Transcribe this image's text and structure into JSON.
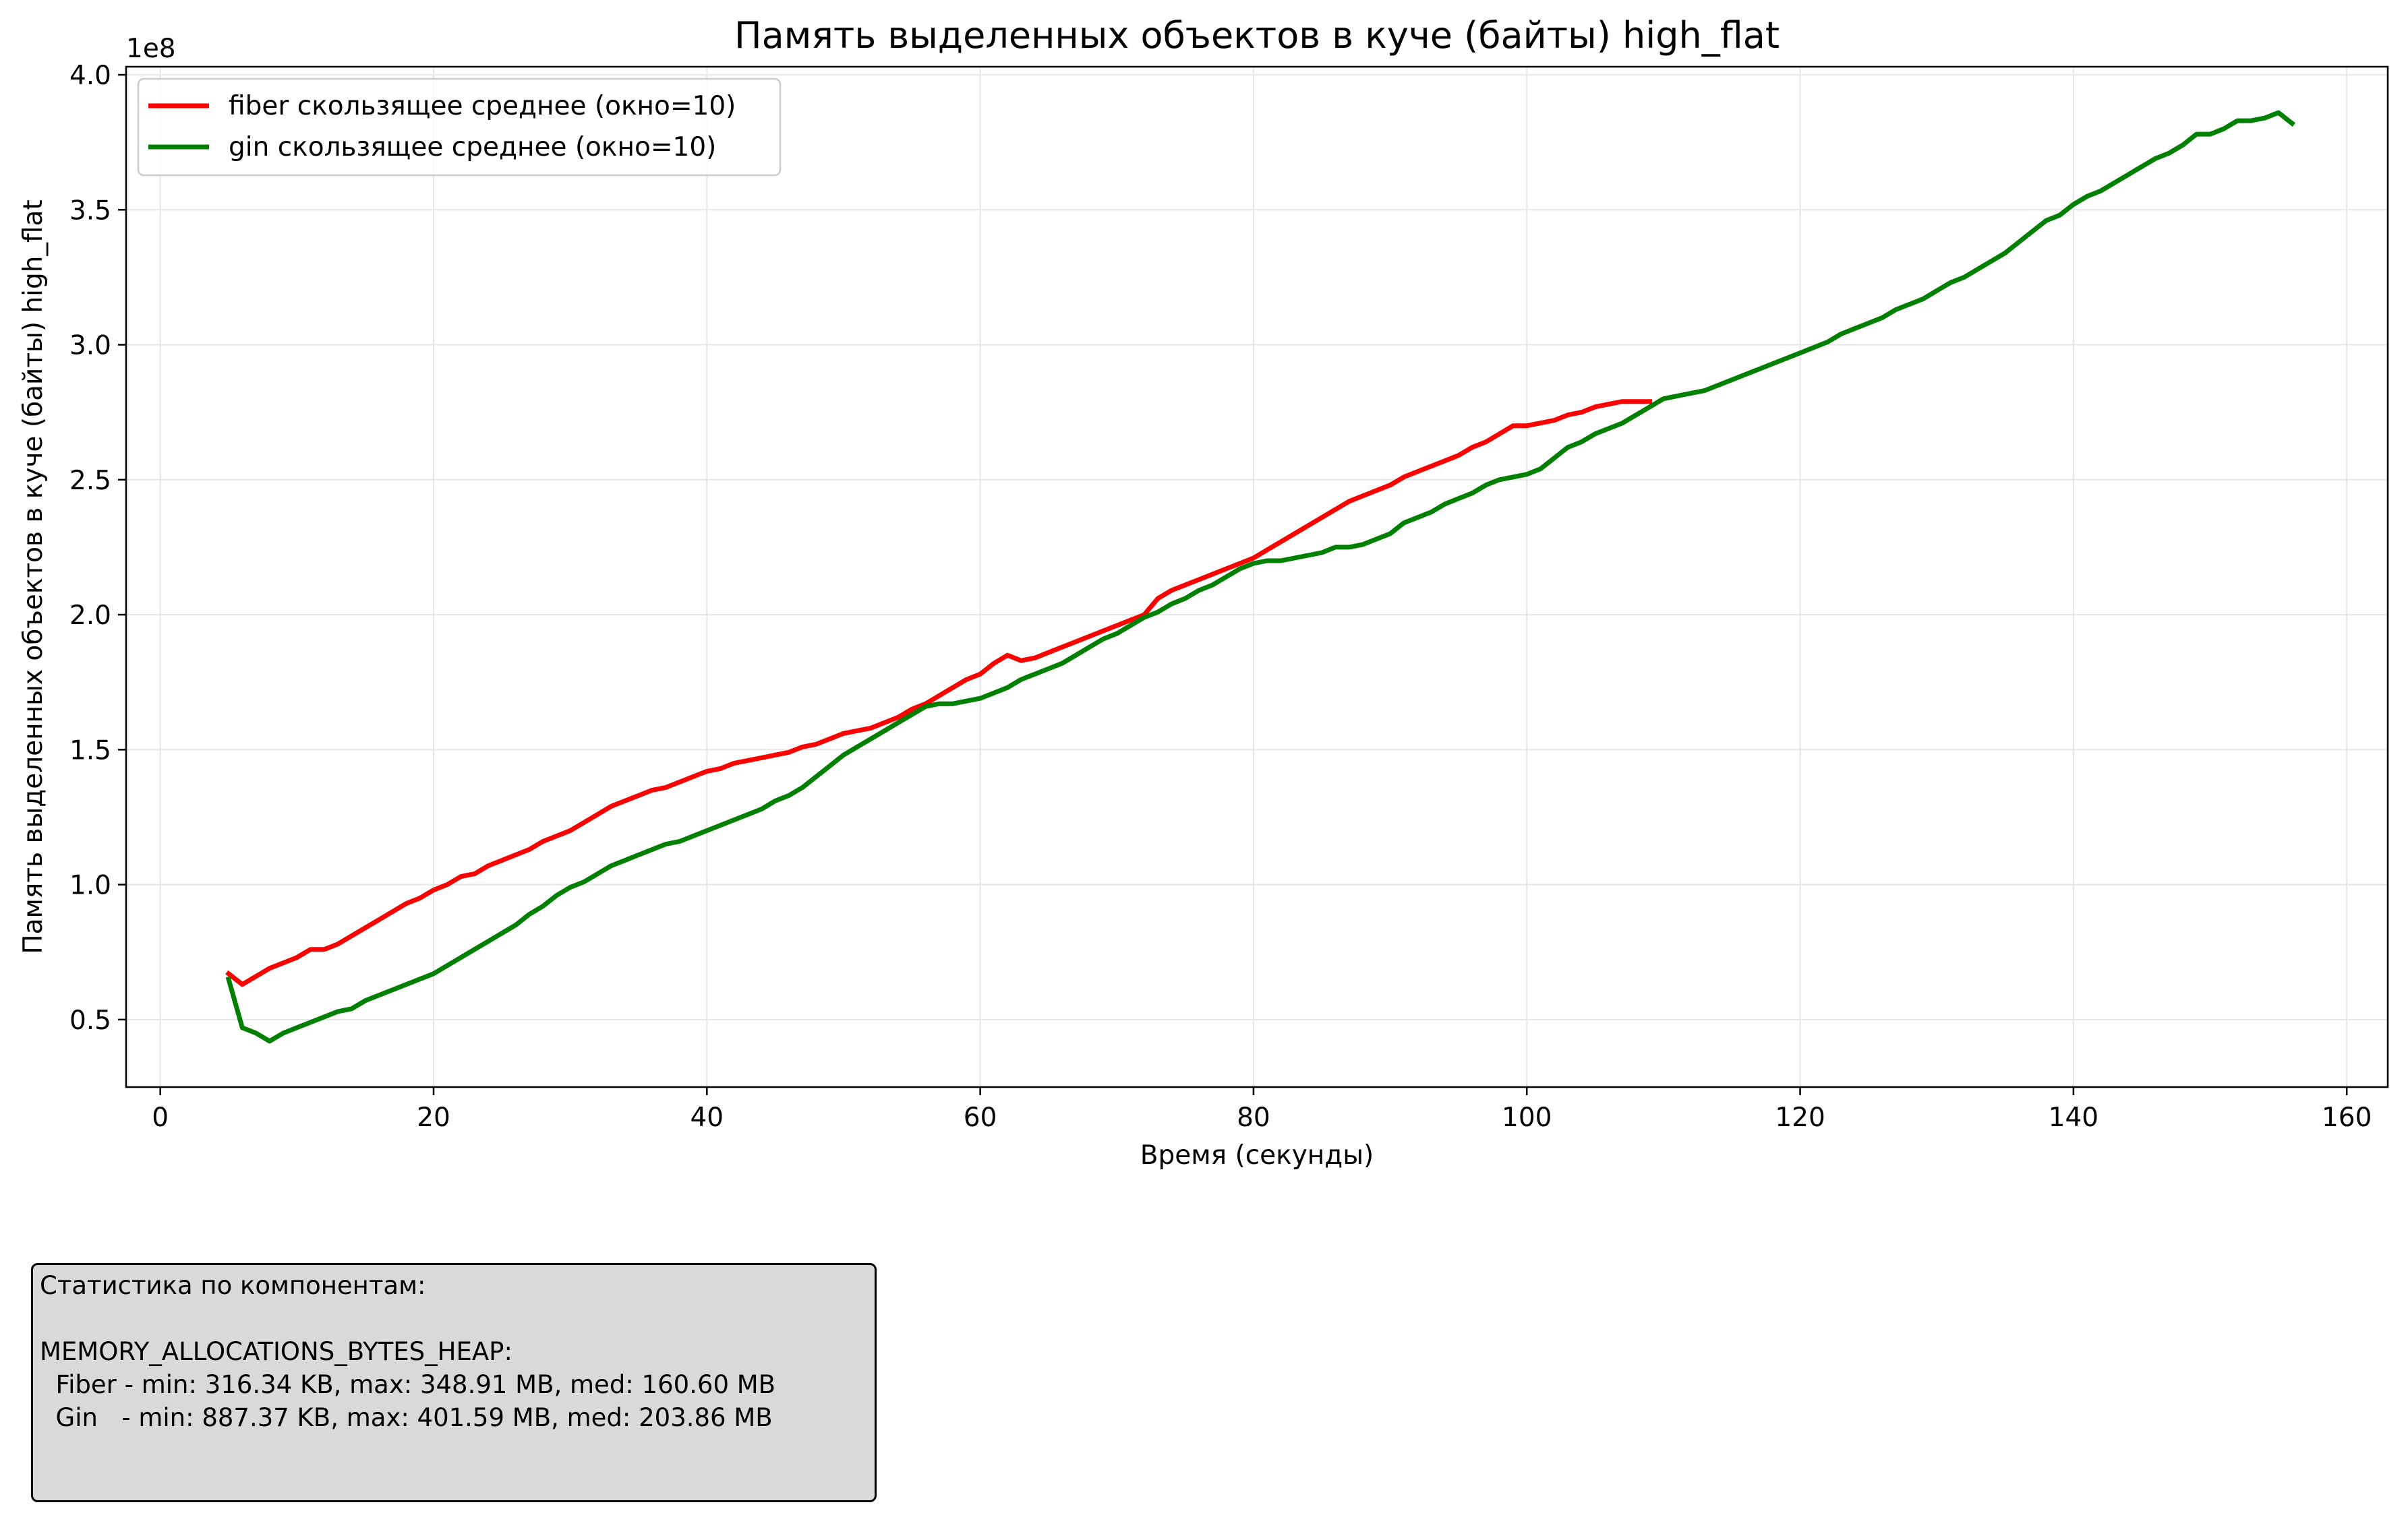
{
  "chart_data": {
    "type": "line",
    "title": "Память выделенных объектов в куче (байты) high_flat",
    "xlabel": "Время (секунды)",
    "ylabel": "Память выделенных объектов в куче (байты) high_flat",
    "y_offset_label": "1e8",
    "xlim": [
      -2.5,
      163
    ],
    "ylim": [
      0.25,
      4.03
    ],
    "y_unit_multiplier": 100000000,
    "x_ticks": [
      0,
      20,
      40,
      60,
      80,
      100,
      120,
      140,
      160
    ],
    "x_tick_labels": [
      "0",
      "20",
      "40",
      "60",
      "80",
      "100",
      "120",
      "140",
      "160"
    ],
    "y_ticks": [
      0.5,
      1.0,
      1.5,
      2.0,
      2.5,
      3.0,
      3.5,
      4.0
    ],
    "y_tick_labels": [
      "0.5",
      "1.0",
      "1.5",
      "2.0",
      "2.5",
      "3.0",
      "3.5",
      "4.0"
    ],
    "grid": true,
    "legend_position": "top-left",
    "series": [
      {
        "name": "fiber скользящее среднее (окно=10)",
        "color": "#ff0000",
        "points": [
          [
            5,
            0.67
          ],
          [
            6,
            0.63
          ],
          [
            7,
            0.66
          ],
          [
            8,
            0.69
          ],
          [
            9,
            0.71
          ],
          [
            10,
            0.73
          ],
          [
            11,
            0.76
          ],
          [
            12,
            0.76
          ],
          [
            13,
            0.78
          ],
          [
            14,
            0.81
          ],
          [
            15,
            0.84
          ],
          [
            16,
            0.87
          ],
          [
            17,
            0.9
          ],
          [
            18,
            0.93
          ],
          [
            19,
            0.95
          ],
          [
            20,
            0.98
          ],
          [
            21,
            1.0
          ],
          [
            22,
            1.03
          ],
          [
            23,
            1.04
          ],
          [
            24,
            1.07
          ],
          [
            25,
            1.09
          ],
          [
            26,
            1.11
          ],
          [
            27,
            1.13
          ],
          [
            28,
            1.16
          ],
          [
            29,
            1.18
          ],
          [
            30,
            1.2
          ],
          [
            31,
            1.23
          ],
          [
            32,
            1.26
          ],
          [
            33,
            1.29
          ],
          [
            34,
            1.31
          ],
          [
            35,
            1.33
          ],
          [
            36,
            1.35
          ],
          [
            37,
            1.36
          ],
          [
            38,
            1.38
          ],
          [
            39,
            1.4
          ],
          [
            40,
            1.42
          ],
          [
            41,
            1.43
          ],
          [
            42,
            1.45
          ],
          [
            43,
            1.46
          ],
          [
            44,
            1.47
          ],
          [
            45,
            1.48
          ],
          [
            46,
            1.49
          ],
          [
            47,
            1.51
          ],
          [
            48,
            1.52
          ],
          [
            49,
            1.54
          ],
          [
            50,
            1.56
          ],
          [
            51,
            1.57
          ],
          [
            52,
            1.58
          ],
          [
            53,
            1.6
          ],
          [
            54,
            1.62
          ],
          [
            55,
            1.65
          ],
          [
            56,
            1.67
          ],
          [
            57,
            1.7
          ],
          [
            58,
            1.73
          ],
          [
            59,
            1.76
          ],
          [
            60,
            1.78
          ],
          [
            61,
            1.82
          ],
          [
            62,
            1.85
          ],
          [
            63,
            1.83
          ],
          [
            64,
            1.84
          ],
          [
            65,
            1.86
          ],
          [
            66,
            1.88
          ],
          [
            67,
            1.9
          ],
          [
            68,
            1.92
          ],
          [
            69,
            1.94
          ],
          [
            70,
            1.96
          ],
          [
            71,
            1.98
          ],
          [
            72,
            2.0
          ],
          [
            73,
            2.06
          ],
          [
            74,
            2.09
          ],
          [
            75,
            2.11
          ],
          [
            76,
            2.13
          ],
          [
            77,
            2.15
          ],
          [
            78,
            2.17
          ],
          [
            79,
            2.19
          ],
          [
            80,
            2.21
          ],
          [
            81,
            2.24
          ],
          [
            82,
            2.27
          ],
          [
            83,
            2.3
          ],
          [
            84,
            2.33
          ],
          [
            85,
            2.36
          ],
          [
            86,
            2.39
          ],
          [
            87,
            2.42
          ],
          [
            88,
            2.44
          ],
          [
            89,
            2.46
          ],
          [
            90,
            2.48
          ],
          [
            91,
            2.51
          ],
          [
            92,
            2.53
          ],
          [
            93,
            2.55
          ],
          [
            94,
            2.57
          ],
          [
            95,
            2.59
          ],
          [
            96,
            2.62
          ],
          [
            97,
            2.64
          ],
          [
            98,
            2.67
          ],
          [
            99,
            2.7
          ],
          [
            100,
            2.7
          ],
          [
            101,
            2.71
          ],
          [
            102,
            2.72
          ],
          [
            103,
            2.74
          ],
          [
            104,
            2.75
          ],
          [
            105,
            2.77
          ],
          [
            106,
            2.78
          ],
          [
            107,
            2.79
          ],
          [
            108,
            2.79
          ],
          [
            109,
            2.79
          ]
        ]
      },
      {
        "name": "gin скользящее среднее (окно=10)",
        "color": "#008000",
        "points": [
          [
            5,
            0.65
          ],
          [
            6,
            0.47
          ],
          [
            7,
            0.45
          ],
          [
            8,
            0.42
          ],
          [
            9,
            0.45
          ],
          [
            10,
            0.47
          ],
          [
            11,
            0.49
          ],
          [
            12,
            0.51
          ],
          [
            13,
            0.53
          ],
          [
            14,
            0.54
          ],
          [
            15,
            0.57
          ],
          [
            16,
            0.59
          ],
          [
            17,
            0.61
          ],
          [
            18,
            0.63
          ],
          [
            19,
            0.65
          ],
          [
            20,
            0.67
          ],
          [
            21,
            0.7
          ],
          [
            22,
            0.73
          ],
          [
            23,
            0.76
          ],
          [
            24,
            0.79
          ],
          [
            25,
            0.82
          ],
          [
            26,
            0.85
          ],
          [
            27,
            0.89
          ],
          [
            28,
            0.92
          ],
          [
            29,
            0.96
          ],
          [
            30,
            0.99
          ],
          [
            31,
            1.01
          ],
          [
            32,
            1.04
          ],
          [
            33,
            1.07
          ],
          [
            34,
            1.09
          ],
          [
            35,
            1.11
          ],
          [
            36,
            1.13
          ],
          [
            37,
            1.15
          ],
          [
            38,
            1.16
          ],
          [
            39,
            1.18
          ],
          [
            40,
            1.2
          ],
          [
            41,
            1.22
          ],
          [
            42,
            1.24
          ],
          [
            43,
            1.26
          ],
          [
            44,
            1.28
          ],
          [
            45,
            1.31
          ],
          [
            46,
            1.33
          ],
          [
            47,
            1.36
          ],
          [
            48,
            1.4
          ],
          [
            49,
            1.44
          ],
          [
            50,
            1.48
          ],
          [
            51,
            1.51
          ],
          [
            52,
            1.54
          ],
          [
            53,
            1.57
          ],
          [
            54,
            1.6
          ],
          [
            55,
            1.63
          ],
          [
            56,
            1.66
          ],
          [
            57,
            1.67
          ],
          [
            58,
            1.67
          ],
          [
            59,
            1.68
          ],
          [
            60,
            1.69
          ],
          [
            61,
            1.71
          ],
          [
            62,
            1.73
          ],
          [
            63,
            1.76
          ],
          [
            64,
            1.78
          ],
          [
            65,
            1.8
          ],
          [
            66,
            1.82
          ],
          [
            67,
            1.85
          ],
          [
            68,
            1.88
          ],
          [
            69,
            1.91
          ],
          [
            70,
            1.93
          ],
          [
            71,
            1.96
          ],
          [
            72,
            1.99
          ],
          [
            73,
            2.01
          ],
          [
            74,
            2.04
          ],
          [
            75,
            2.06
          ],
          [
            76,
            2.09
          ],
          [
            77,
            2.11
          ],
          [
            78,
            2.14
          ],
          [
            79,
            2.17
          ],
          [
            80,
            2.19
          ],
          [
            81,
            2.2
          ],
          [
            82,
            2.2
          ],
          [
            83,
            2.21
          ],
          [
            84,
            2.22
          ],
          [
            85,
            2.23
          ],
          [
            86,
            2.25
          ],
          [
            87,
            2.25
          ],
          [
            88,
            2.26
          ],
          [
            89,
            2.28
          ],
          [
            90,
            2.3
          ],
          [
            91,
            2.34
          ],
          [
            92,
            2.36
          ],
          [
            93,
            2.38
          ],
          [
            94,
            2.41
          ],
          [
            95,
            2.43
          ],
          [
            96,
            2.45
          ],
          [
            97,
            2.48
          ],
          [
            98,
            2.5
          ],
          [
            99,
            2.51
          ],
          [
            100,
            2.52
          ],
          [
            101,
            2.54
          ],
          [
            102,
            2.58
          ],
          [
            103,
            2.62
          ],
          [
            104,
            2.64
          ],
          [
            105,
            2.67
          ],
          [
            106,
            2.69
          ],
          [
            107,
            2.71
          ],
          [
            108,
            2.74
          ],
          [
            109,
            2.77
          ],
          [
            110,
            2.8
          ],
          [
            111,
            2.81
          ],
          [
            112,
            2.82
          ],
          [
            113,
            2.83
          ],
          [
            114,
            2.85
          ],
          [
            115,
            2.87
          ],
          [
            116,
            2.89
          ],
          [
            117,
            2.91
          ],
          [
            118,
            2.93
          ],
          [
            119,
            2.95
          ],
          [
            120,
            2.97
          ],
          [
            121,
            2.99
          ],
          [
            122,
            3.01
          ],
          [
            123,
            3.04
          ],
          [
            124,
            3.06
          ],
          [
            125,
            3.08
          ],
          [
            126,
            3.1
          ],
          [
            127,
            3.13
          ],
          [
            128,
            3.15
          ],
          [
            129,
            3.17
          ],
          [
            130,
            3.2
          ],
          [
            131,
            3.23
          ],
          [
            132,
            3.25
          ],
          [
            133,
            3.28
          ],
          [
            134,
            3.31
          ],
          [
            135,
            3.34
          ],
          [
            136,
            3.38
          ],
          [
            137,
            3.42
          ],
          [
            138,
            3.46
          ],
          [
            139,
            3.48
          ],
          [
            140,
            3.52
          ],
          [
            141,
            3.55
          ],
          [
            142,
            3.57
          ],
          [
            143,
            3.6
          ],
          [
            144,
            3.63
          ],
          [
            145,
            3.66
          ],
          [
            146,
            3.69
          ],
          [
            147,
            3.71
          ],
          [
            148,
            3.74
          ],
          [
            149,
            3.78
          ],
          [
            150,
            3.78
          ],
          [
            151,
            3.8
          ],
          [
            152,
            3.83
          ],
          [
            153,
            3.83
          ],
          [
            154,
            3.84
          ],
          [
            155,
            3.86
          ],
          [
            156,
            3.82
          ]
        ]
      }
    ]
  },
  "stats_box": {
    "lines": [
      "Статистика по компонентам:",
      "",
      "MEMORY_ALLOCATIONS_BYTES_HEAP:",
      "  Fiber - min: 316.34 KB, max: 348.91 MB, med: 160.60 MB",
      "  Gin   - min: 887.37 KB, max: 401.59 MB, med: 203.86 MB"
    ]
  }
}
